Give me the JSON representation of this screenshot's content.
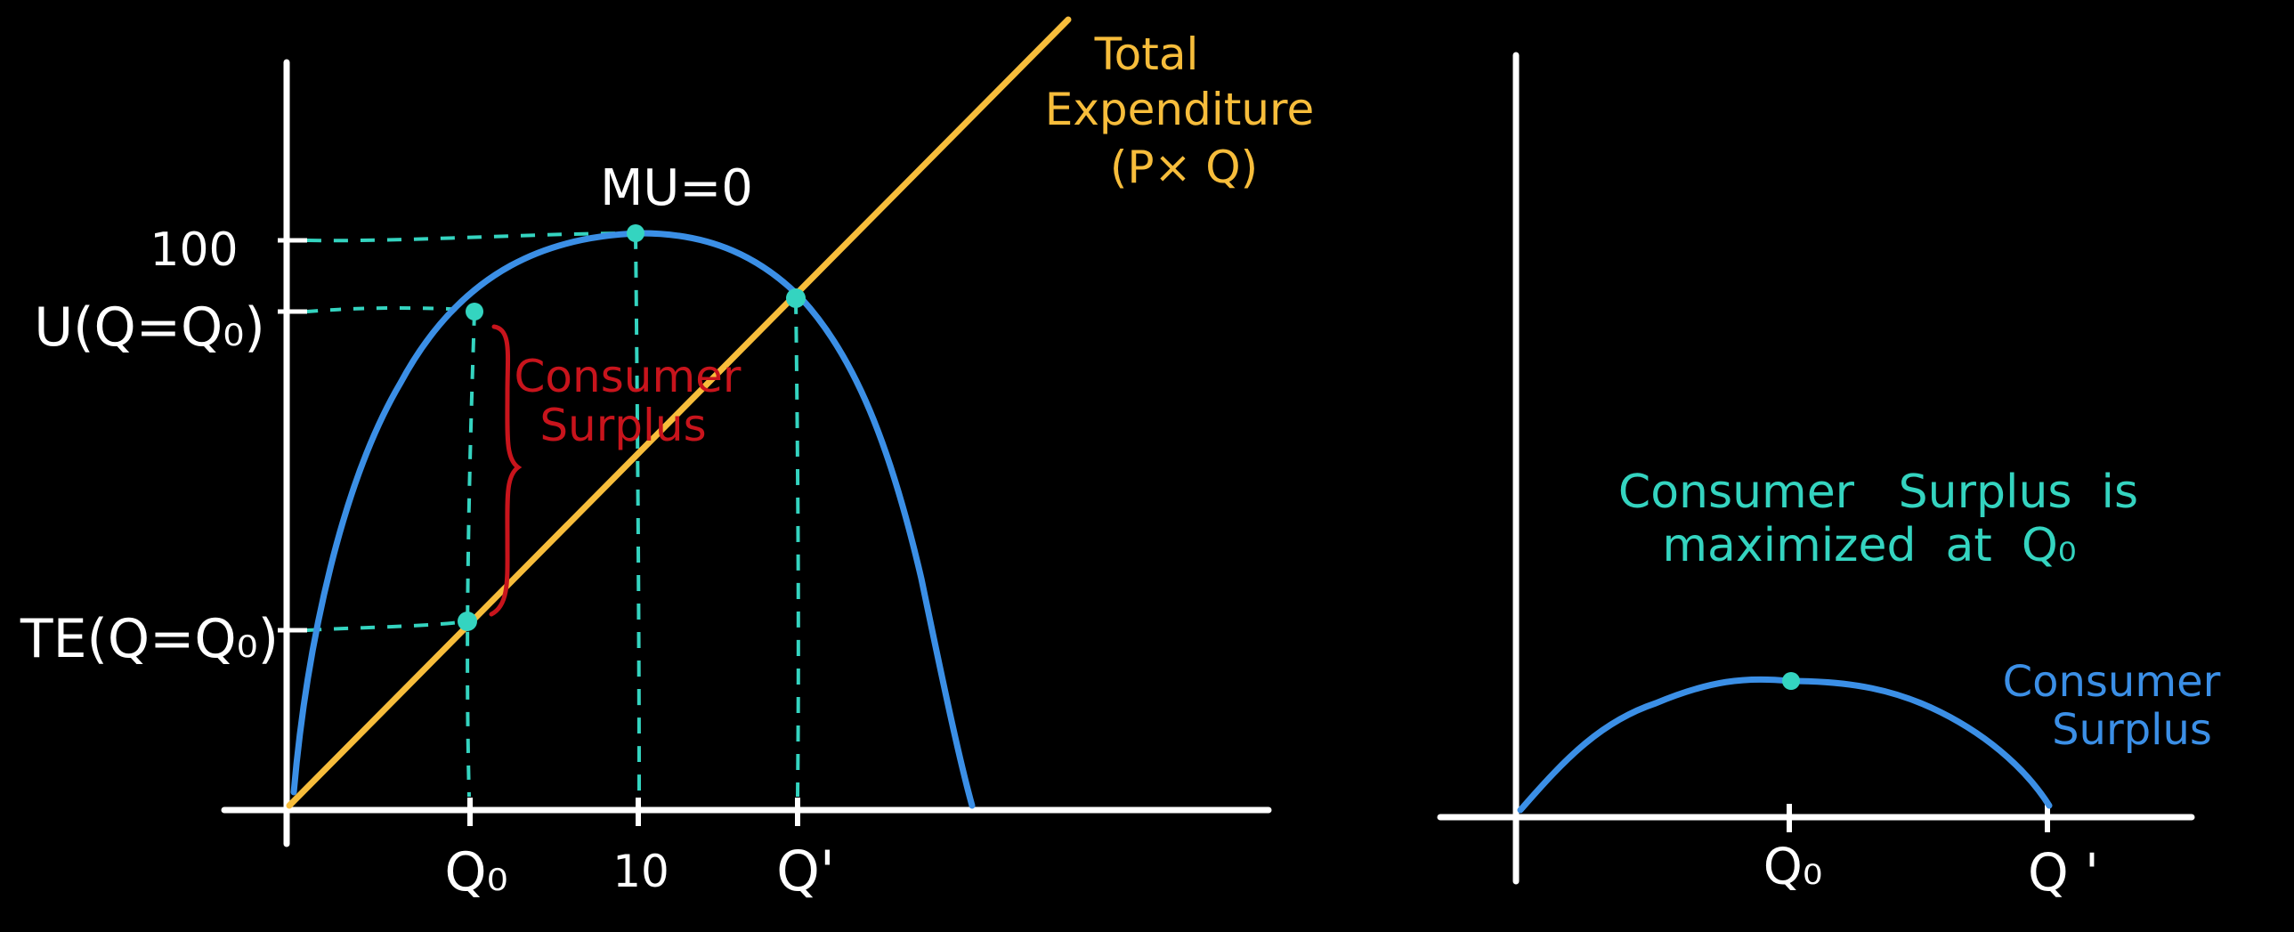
{
  "colors": {
    "background": "#000000",
    "axis": "#ffffff",
    "utility": "#3b8fe6",
    "expenditure": "#f7bd3b",
    "guides": "#34d4c0",
    "surplus_label": "#c8141c",
    "cs_curve": "#3b8fe6",
    "note": "#34d4c0"
  },
  "left_chart": {
    "y_labels": {
      "hundred": "100",
      "u_q0": "U(Q=Q₀)",
      "te_q0": "TE(Q=Q₀)"
    },
    "x_labels": {
      "q0": "Q₀",
      "ten": "10",
      "qprime": "Q'"
    },
    "mu_label": "MU=0",
    "te_label": {
      "line1": "Total",
      "line2": "Expenditure",
      "line3": "(P× Q)"
    },
    "surplus_label": {
      "line1": "Consumer",
      "line2": "Surplus"
    },
    "values": {
      "utility_max": 100,
      "quantity_at_max": 10
    }
  },
  "right_chart": {
    "note": {
      "line1": "Consumer   Surplus  is",
      "line2": "maximized  at  Q₀"
    },
    "curve_label": {
      "line1": "Consumer",
      "line2": "Surplus"
    },
    "x_labels": {
      "q0": "Q₀",
      "qprime": "Q '"
    }
  }
}
